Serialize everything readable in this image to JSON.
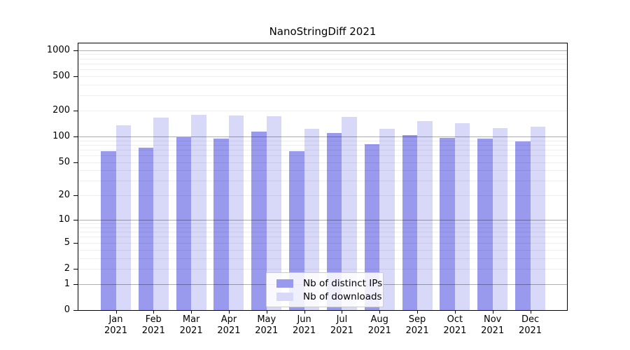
{
  "chart_data": {
    "type": "bar",
    "title": "NanoStringDiff 2021",
    "categories": [
      "Jan",
      "Feb",
      "Mar",
      "Apr",
      "May",
      "Jun",
      "Jul",
      "Aug",
      "Sep",
      "Oct",
      "Nov",
      "Dec"
    ],
    "category_year": "2021",
    "series": [
      {
        "name": "Nb of distinct IPs",
        "color": "#9999ee",
        "values": [
          68,
          74,
          99,
          94,
          115,
          67,
          110,
          82,
          103,
          96,
          95,
          87
        ]
      },
      {
        "name": "Nb of downloads",
        "color": "#d8d8f8",
        "values": [
          135,
          165,
          178,
          175,
          173,
          122,
          170,
          123,
          150,
          143,
          126,
          131
        ]
      }
    ],
    "yscale": "log1p",
    "y_ticks": [
      0,
      1,
      2,
      5,
      10,
      20,
      50,
      100,
      200,
      500,
      1000
    ],
    "ylim": [
      0,
      1200
    ],
    "grid": "horizontal",
    "legend_position": "bottom-center",
    "colors": {
      "grid_minor": "rgba(0,0,0,0.065)",
      "grid_decade": "rgba(0,0,0,0.32)",
      "axis": "#000000"
    }
  }
}
